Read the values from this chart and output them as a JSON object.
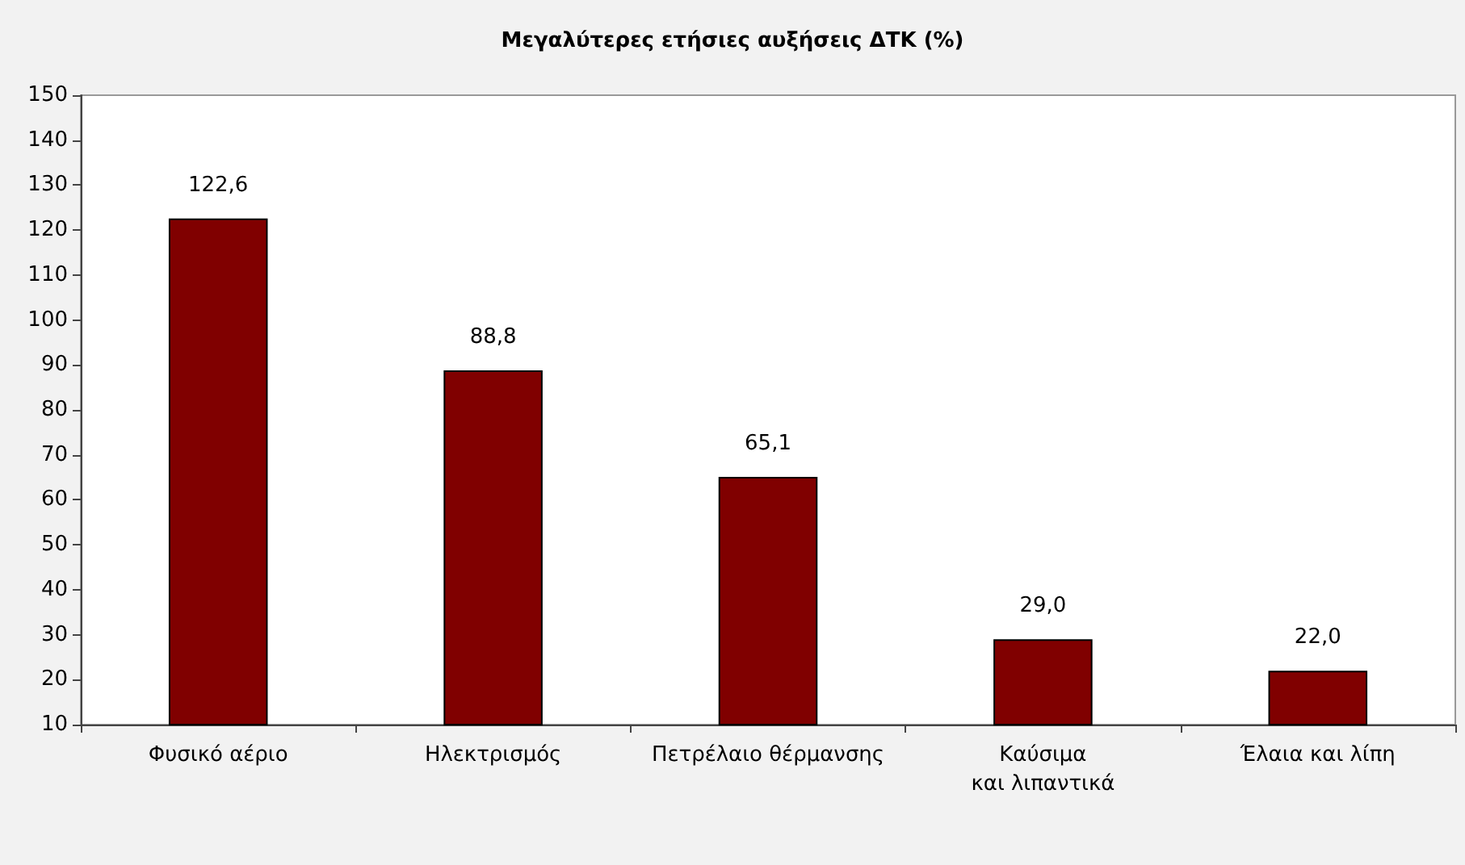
{
  "chart_data": {
    "type": "bar",
    "title": "Μεγαλύτερες ετήσιες αυξήσεις ΔΤΚ (%)",
    "categories": [
      "Φυσικό αέριο",
      "Ηλεκτρισμός",
      "Πετρέλαιο θέρμανσης",
      "Καύσιμα\nκαι λιπαντικά",
      "Έλαια και λίπη"
    ],
    "values": [
      122.6,
      88.8,
      65.1,
      29.0,
      22.0
    ],
    "value_labels": [
      "122,6",
      "88,8",
      "65,1",
      "29,0",
      "22,0"
    ],
    "color": "#800000",
    "ylim": [
      10,
      150
    ],
    "yticks": [
      10,
      20,
      30,
      40,
      50,
      60,
      70,
      80,
      90,
      100,
      110,
      120,
      130,
      140,
      150
    ],
    "grid": false
  }
}
